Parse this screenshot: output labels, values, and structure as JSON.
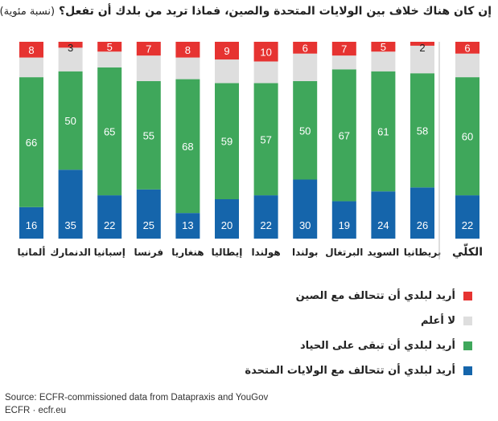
{
  "title": "إن كان هناك خلاف بين الولايات المتحدة والصين، فماذا تريد من بلدك أن تفعل؟",
  "subtitle": "(نسبة مئوية)",
  "legend": [
    {
      "key": "china",
      "label": "أريد لبلدي أن تتحالف مع الصين",
      "color": "#e63331"
    },
    {
      "key": "dontknow",
      "label": "لا أعلم",
      "color": "#dedede"
    },
    {
      "key": "neutral",
      "label": "أريد لبلدي أن تبقى على الحياد",
      "color": "#3fa75b"
    },
    {
      "key": "us",
      "label": "أريد لبلدي أن تتحالف مع الولايات المتحدة",
      "color": "#1565ab"
    }
  ],
  "source": {
    "line1": "Source: ECFR-commissioned data from Datapraxis and YouGov",
    "line2": "ECFR · ecfr.eu"
  },
  "chart_data": {
    "type": "bar",
    "stacked": true,
    "orientation": "vertical",
    "categories": [
      "ألمانيا",
      "الدنمارك",
      "إسبانيا",
      "فرنسا",
      "هنغاريا",
      "إيطاليا",
      "هولندا",
      "بولندا",
      "البرتغال",
      "السويد",
      "بريطانيا",
      "الكلّي"
    ],
    "series": [
      {
        "name": "أريد لبلدي أن تتحالف مع الولايات المتحدة",
        "color": "#1565ab",
        "values": [
          16,
          35,
          22,
          25,
          13,
          20,
          22,
          30,
          19,
          24,
          26,
          22
        ]
      },
      {
        "name": "أريد لبلدي أن تبقى على الحياد",
        "color": "#3fa75b",
        "values": [
          66,
          50,
          65,
          55,
          68,
          59,
          57,
          50,
          67,
          61,
          58,
          60
        ]
      },
      {
        "name": "لا أعلم",
        "color": "#dedede",
        "values": [
          10,
          12,
          8,
          13,
          11,
          12,
          11,
          14,
          7,
          10,
          14,
          12
        ]
      },
      {
        "name": "أريد لبلدي أن تتحالف مع الصين",
        "color": "#e63331",
        "values": [
          8,
          3,
          5,
          7,
          8,
          9,
          10,
          6,
          7,
          5,
          2,
          6
        ]
      }
    ],
    "data_labels_shown_for": [
      "أريد لبلدي أن تتحالف مع الولايات المتحدة",
      "أريد لبلدي أن تبقى على الحياد",
      "أريد لبلدي أن تتحالف مع الصين"
    ],
    "ylim": [
      0,
      100
    ],
    "grid": false,
    "legend_position": "bottom",
    "xlabel": "",
    "ylabel": ""
  }
}
